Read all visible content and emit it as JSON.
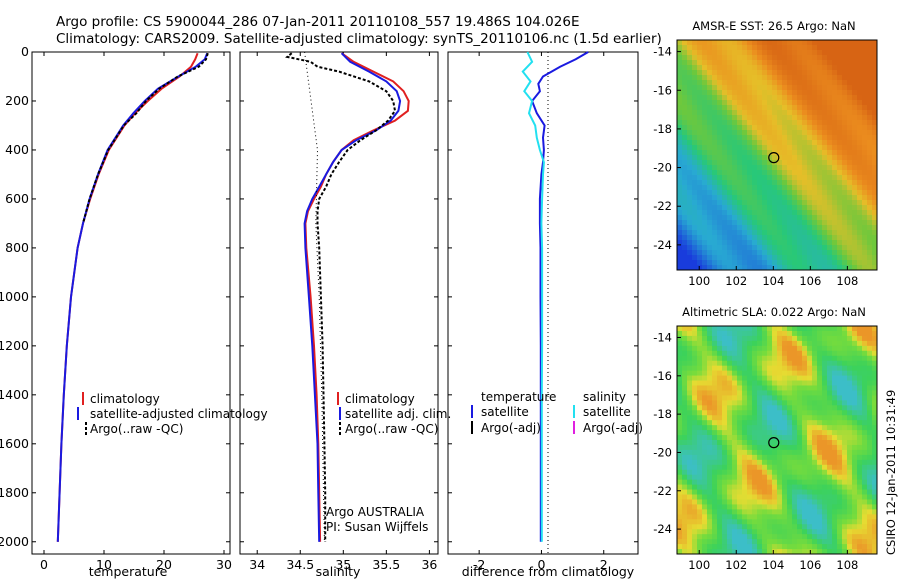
{
  "header": {
    "line1": "Argo profile: CS 5900044_286 07-Jan-2011 20110108_557 19.486S 104.026E",
    "line2": "Climatology: CARS2009. Satellite-adjusted climatology: synTS_20110106.nc (1.5d earlier)"
  },
  "side_label": "CSIRO 12-Jan-2011 10:31:49",
  "float_info": {
    "line1": "Argo AUSTRALIA",
    "line2": "PI: Susan Wijffels"
  },
  "colors": {
    "climatology": "#e02020",
    "satellite": "#1a1ae0",
    "argo": "#000000",
    "salinity_sat": "#22e0f0",
    "salinity_argo": "#e020e0"
  },
  "maps": {
    "sst_title": "AMSR-E SST: 26.5 Argo: NaN",
    "sla_title": "Altimetric SLA: 0.022 Argo: NaN",
    "lon_ticks": [
      "100",
      "102",
      "104",
      "106",
      "108"
    ],
    "lat_ticks": [
      "-14",
      "-16",
      "-18",
      "-20",
      "-22",
      "-24"
    ],
    "float_lon": 104.026,
    "float_lat": -19.486
  },
  "chart_data": [
    {
      "type": "line",
      "title": "",
      "xlabel": "temperature",
      "ylabel": "",
      "xlim": [
        -2,
        31
      ],
      "ylim": [
        2050,
        0
      ],
      "xticks": [
        "0",
        "10",
        "20",
        "30"
      ],
      "yticks": [
        "0",
        "200",
        "400",
        "600",
        "800",
        "1000",
        "1200",
        "1400",
        "1600",
        "1800",
        "2000"
      ],
      "legend": [
        "climatology",
        "satellite-adjusted climatology",
        "Argo(..raw -QC)"
      ],
      "legend_position": "bottom",
      "series": [
        {
          "name": "climatology",
          "depth": [
            5,
            30,
            60,
            100,
            150,
            200,
            250,
            300,
            400,
            500,
            600,
            700,
            800,
            1000,
            1200,
            1400,
            1600,
            1800,
            2000
          ],
          "values": [
            25.6,
            25.2,
            24.5,
            22.6,
            19.6,
            17.3,
            15.2,
            13.4,
            10.8,
            9.1,
            7.7,
            6.5,
            5.6,
            4.5,
            3.8,
            3.3,
            2.9,
            2.6,
            2.3
          ]
        },
        {
          "name": "satellite-adjusted climatology",
          "depth": [
            5,
            30,
            60,
            100,
            150,
            200,
            250,
            300,
            400,
            500,
            600,
            700,
            800,
            1000,
            1200,
            1400,
            1600,
            1800,
            2000
          ],
          "values": [
            27.2,
            26.8,
            25.3,
            22.4,
            19.0,
            16.8,
            14.9,
            13.2,
            10.6,
            9.0,
            7.6,
            6.5,
            5.6,
            4.5,
            3.8,
            3.3,
            2.9,
            2.6,
            2.3
          ]
        },
        {
          "name": "Argo(..raw -QC)",
          "depth": [
            5,
            30,
            60,
            100,
            150,
            200,
            250,
            300,
            400,
            500,
            600,
            700
          ],
          "values": [
            27.3,
            27.0,
            25.8,
            22.3,
            19.2,
            17.0,
            15.4,
            13.3,
            10.7,
            9.0,
            7.6,
            6.5
          ]
        }
      ]
    },
    {
      "type": "line",
      "title": "",
      "xlabel": "salinity",
      "ylabel": "",
      "xlim": [
        33.8,
        36.1
      ],
      "ylim": [
        2050,
        0
      ],
      "xticks": [
        "34",
        "34.5",
        "35",
        "35.5",
        "36"
      ],
      "legend": [
        "climatology",
        "satellite adj. clim.",
        "Argo(..raw -QC)"
      ],
      "legend_position": "bottom",
      "series": [
        {
          "name": "climatology",
          "depth": [
            5,
            40,
            80,
            120,
            160,
            200,
            240,
            280,
            320,
            360,
            400,
            450,
            500,
            550,
            600,
            650,
            700,
            800,
            1000,
            1200,
            1400,
            1600,
            1800,
            2000
          ],
          "values": [
            34.98,
            35.12,
            35.35,
            35.58,
            35.7,
            35.76,
            35.75,
            35.6,
            35.35,
            35.12,
            34.98,
            34.88,
            34.8,
            34.74,
            34.66,
            34.59,
            34.56,
            34.57,
            34.62,
            34.66,
            34.69,
            34.71,
            34.72,
            34.73
          ]
        },
        {
          "name": "satellite adj. clim.",
          "depth": [
            5,
            40,
            80,
            120,
            160,
            200,
            240,
            280,
            320,
            360,
            400,
            450,
            500,
            550,
            600,
            650,
            700,
            800,
            1000,
            1200,
            1400,
            1600,
            1800,
            2000
          ],
          "values": [
            34.98,
            35.08,
            35.3,
            35.5,
            35.62,
            35.66,
            35.64,
            35.55,
            35.38,
            35.15,
            34.98,
            34.88,
            34.8,
            34.72,
            34.64,
            34.58,
            34.55,
            34.56,
            34.6,
            34.64,
            34.67,
            34.7,
            34.71,
            34.72
          ]
        },
        {
          "name": "Argo(..raw -QC)",
          "depth": [
            5,
            20,
            40,
            60,
            80,
            120,
            160,
            200,
            240,
            280,
            320,
            360,
            400,
            450,
            500,
            550,
            600,
            650,
            700,
            800,
            1000,
            1200,
            1400,
            1600,
            1800,
            2000
          ],
          "values": [
            34.4,
            34.35,
            34.62,
            34.7,
            34.95,
            35.3,
            35.5,
            35.58,
            35.6,
            35.52,
            35.38,
            35.2,
            35.05,
            34.95,
            34.86,
            34.8,
            34.72,
            34.7,
            34.7,
            34.72,
            34.74,
            34.76,
            34.77,
            34.78,
            34.79,
            34.79
          ]
        }
      ]
    },
    {
      "type": "line",
      "title": "",
      "xlabel": "difference from climatology",
      "ylabel": "",
      "xlim": [
        -3,
        3.1
      ],
      "ylim": [
        2050,
        0
      ],
      "xticks": [
        "-2",
        "0",
        "2"
      ],
      "legend": [
        "temperature",
        "satellite",
        "Argo(-adj)",
        "salinity",
        "satellite",
        "Argo(-adj)"
      ],
      "legend_headers": {
        "temperature": "temperature",
        "salinity": "salinity"
      },
      "legend_position": "bottom",
      "series": [
        {
          "name": "temperature satellite",
          "depth": [
            0,
            30,
            60,
            100,
            130,
            160,
            200,
            250,
            300,
            350,
            400,
            450,
            500,
            600,
            700,
            800,
            1000,
            1200,
            1400,
            1600,
            1800,
            2000
          ],
          "values": [
            1.5,
            1.1,
            0.6,
            0.05,
            -0.1,
            -0.05,
            -0.3,
            -0.15,
            0.1,
            0.05,
            0.08,
            0.05,
            0.0,
            -0.05,
            -0.05,
            -0.03,
            -0.03,
            -0.02,
            -0.02,
            -0.02,
            -0.02,
            -0.02
          ]
        },
        {
          "name": "salinity satellite",
          "depth": [
            0,
            40,
            80,
            120,
            160,
            200,
            250,
            300,
            350,
            400,
            450,
            500,
            600,
            700,
            800,
            1000,
            1200,
            1400,
            1600,
            1800,
            2000
          ],
          "values": [
            -0.45,
            -0.3,
            -0.6,
            -0.35,
            -0.55,
            -0.3,
            -0.4,
            -0.2,
            -0.15,
            -0.05,
            0.08,
            0.05,
            0.02,
            0.0,
            0.02,
            0.02,
            0.02,
            0.01,
            0.01,
            0.01,
            0.01
          ]
        }
      ]
    }
  ]
}
